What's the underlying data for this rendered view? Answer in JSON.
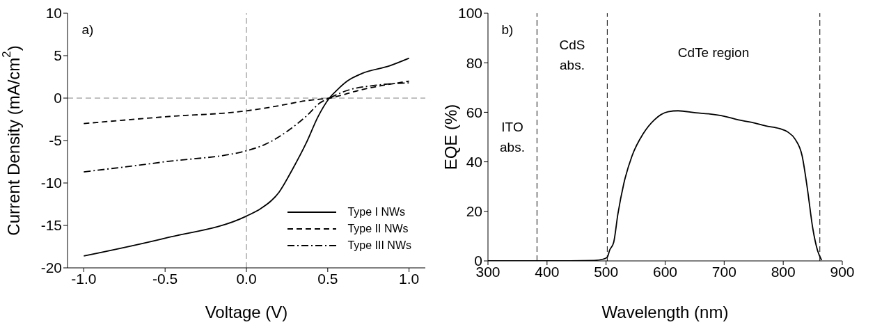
{
  "chart_data": [
    {
      "type": "line",
      "xlabel": "Voltage (V)",
      "ylabel": "Current Density (mA/cm$^{2}$)",
      "xlim": [
        -1.1,
        1.1
      ],
      "xticks": [
        {
          "value": -1,
          "label": "-1.0"
        },
        {
          "value": -0.5,
          "label": "-0.5"
        },
        {
          "value": 0,
          "label": "0.0"
        },
        {
          "value": 0.5,
          "label": "0.5"
        },
        {
          "value": 1,
          "label": "1.0"
        }
      ],
      "ylim": [
        -20,
        10
      ],
      "yticks": [
        -20,
        -15,
        -10,
        -5,
        0,
        5,
        10
      ],
      "legend": "bottom right",
      "annotations": [
        "a)"
      ],
      "ref_lines": [
        {
          "axis": "x",
          "value": 0,
          "color": "#808080",
          "line_style": "dashed"
        },
        {
          "axis": "y",
          "value": 0,
          "color": "#808080",
          "line_style": "dashed"
        }
      ],
      "series": [
        {
          "name": "Type I NWs",
          "color": "#000000",
          "line_style": "solid",
          "x": [
            -1,
            -0.5,
            0,
            0.09,
            0.2,
            0.28,
            0.37,
            0.44,
            0.51,
            0.56,
            0.62,
            0.71,
            0.88,
            1
          ],
          "values": [
            -18.6,
            -16.5,
            -13.9,
            -13.0,
            -11.1,
            -8.5,
            -5.2,
            -2.2,
            0,
            1.0,
            2.0,
            2.9,
            3.8,
            4.7
          ]
        },
        {
          "name": "Type II NWs",
          "color": "#000000",
          "line_style": "dashed",
          "x": [
            -1,
            -0.5,
            0,
            0.2,
            0.37,
            0.51,
            0.71,
            1
          ],
          "values": [
            -3.0,
            -2.2,
            -1.5,
            -0.9,
            -0.3,
            0,
            1.0,
            2.0
          ]
        },
        {
          "name": "Type III NWs",
          "color": "#000000",
          "line_style": "dashdot",
          "x": [
            -1,
            -0.5,
            0,
            0.11,
            0.28,
            0.37,
            0.45,
            0.51,
            0.62,
            0.79,
            1
          ],
          "values": [
            -8.7,
            -7.5,
            -6.2,
            -5.5,
            -3.5,
            -2.1,
            -0.6,
            0,
            0.9,
            1.5,
            1.8
          ]
        }
      ]
    },
    {
      "type": "line",
      "xlabel": "Wavelength (nm)",
      "ylabel": "EQE (%)",
      "xlim": [
        300,
        900
      ],
      "xticks": [
        300,
        400,
        500,
        600,
        700,
        800,
        900
      ],
      "ylim": [
        0,
        100
      ],
      "yticks": [
        0,
        20,
        40,
        60,
        80,
        100
      ],
      "annotations": [
        "b)",
        "ITO\nabs.",
        "CdS\nabs.",
        "CdTe region"
      ],
      "ref_lines": [
        {
          "axis": "x",
          "value": 383,
          "color": "#000000",
          "line_style": "dashed"
        },
        {
          "axis": "x",
          "value": 502,
          "color": "#000000",
          "line_style": "dashed"
        },
        {
          "axis": "x",
          "value": 862,
          "color": "#000000",
          "line_style": "dashed"
        }
      ],
      "series": [
        {
          "color": "#000000",
          "line_style": "solid",
          "x": [
            300,
            400,
            480,
            495,
            502,
            506,
            513,
            520,
            530,
            544,
            563,
            582,
            605,
            622,
            652,
            676,
            700,
            723,
            747,
            770,
            794,
            808,
            820,
            832,
            841,
            850,
            858,
            865
          ],
          "values": [
            0,
            0,
            0.2,
            0.7,
            1.5,
            4.3,
            7.6,
            18.9,
            31.2,
            42.4,
            51.4,
            57,
            60.2,
            60.6,
            59.8,
            59.3,
            58.4,
            57,
            55.9,
            54.5,
            53.4,
            52,
            49.2,
            42.4,
            29,
            13.2,
            4.3,
            0.3
          ]
        }
      ]
    }
  ]
}
